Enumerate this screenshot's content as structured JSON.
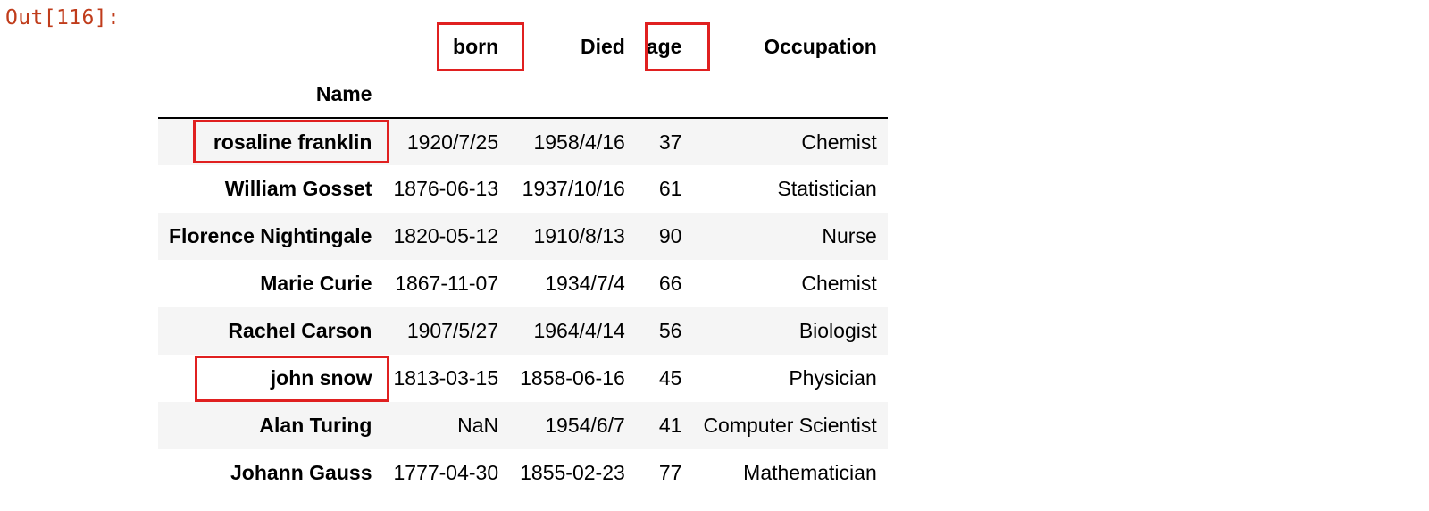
{
  "prompt": "Out[116]:",
  "table": {
    "index_name": "Name",
    "columns": [
      "born",
      "Died",
      "age",
      "Occupation"
    ],
    "rows": [
      {
        "name": "rosaline franklin",
        "born": "1920/7/25",
        "died": "1958/4/16",
        "age": "37",
        "occupation": "Chemist"
      },
      {
        "name": "William Gosset",
        "born": "1876-06-13",
        "died": "1937/10/16",
        "age": "61",
        "occupation": "Statistician"
      },
      {
        "name": "Florence Nightingale",
        "born": "1820-05-12",
        "died": "1910/8/13",
        "age": "90",
        "occupation": "Nurse"
      },
      {
        "name": "Marie Curie",
        "born": "1867-11-07",
        "died": "1934/7/4",
        "age": "66",
        "occupation": "Chemist"
      },
      {
        "name": "Rachel Carson",
        "born": "1907/5/27",
        "died": "1964/4/14",
        "age": "56",
        "occupation": "Biologist"
      },
      {
        "name": "john snow",
        "born": "1813-03-15",
        "died": "1858-06-16",
        "age": "45",
        "occupation": "Physician"
      },
      {
        "name": "Alan Turing",
        "born": "NaN",
        "died": "1954/6/7",
        "age": "41",
        "occupation": "Computer Scientist"
      },
      {
        "name": "Johann Gauss",
        "born": "1777-04-30",
        "died": "1855-02-23",
        "age": "77",
        "occupation": "Mathematician"
      }
    ]
  },
  "colors": {
    "prompt": "#c03c1b",
    "highlight": "#e02020",
    "stripe": "#f5f5f5"
  }
}
